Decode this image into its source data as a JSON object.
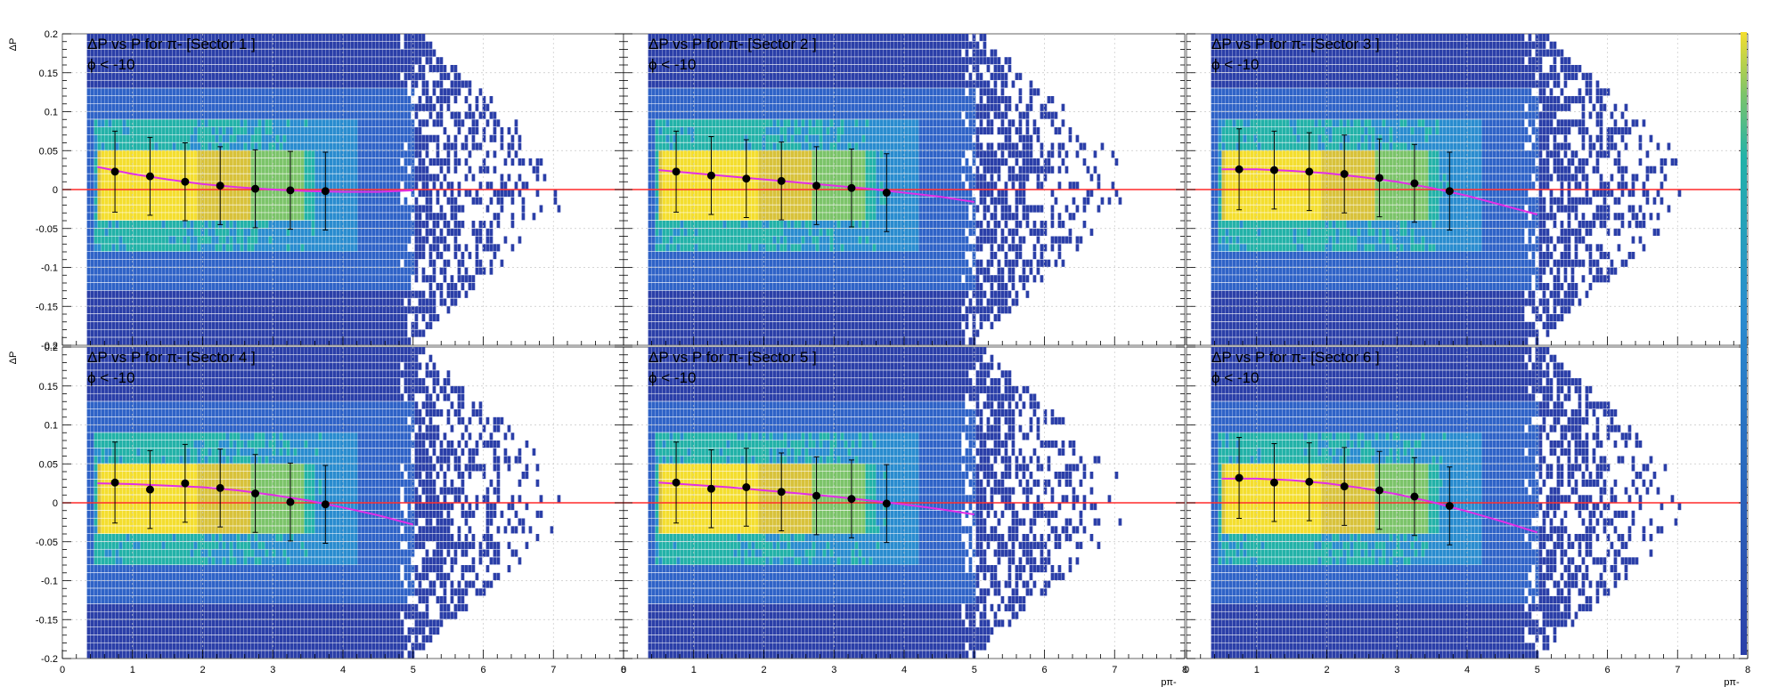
{
  "chart_data": [
    {
      "type": "heatmap",
      "title": "ΔP vs P for   π- [Sector 1 ]",
      "subtitle": "ϕ < -10",
      "xlabel": "",
      "ylabel": "ΔP",
      "xlim": [
        0,
        8
      ],
      "ylim": [
        -0.2,
        0.2
      ],
      "grid": true,
      "profile": {
        "x": [
          0.75,
          1.25,
          1.75,
          2.25,
          2.75,
          3.25,
          3.75
        ],
        "y": [
          0.023,
          0.017,
          0.01,
          0.005,
          0.001,
          -0.001,
          -0.002
        ],
        "err": [
          0.052,
          0.05,
          0.05,
          0.05,
          0.05,
          0.05,
          0.05
        ]
      },
      "fit": {
        "x": [
          0.5,
          1,
          1.5,
          2,
          2.5,
          3,
          3.5,
          4,
          4.5,
          5
        ],
        "y": [
          0.029,
          0.02,
          0.013,
          0.007,
          0.003,
          0.0,
          -0.002,
          -0.003,
          -0.003,
          -0.001
        ]
      },
      "reference_line": 0
    },
    {
      "type": "heatmap",
      "title": "ΔP vs P for   π- [Sector 2 ]",
      "subtitle": "ϕ < -10",
      "xlabel": "pπ-",
      "ylabel": "",
      "xlim": [
        0,
        8
      ],
      "ylim": [
        -0.2,
        0.2
      ],
      "grid": true,
      "profile": {
        "x": [
          0.75,
          1.25,
          1.75,
          2.25,
          2.75,
          3.25,
          3.75
        ],
        "y": [
          0.023,
          0.018,
          0.014,
          0.011,
          0.005,
          0.002,
          -0.004
        ],
        "err": [
          0.052,
          0.05,
          0.05,
          0.05,
          0.05,
          0.05,
          0.05
        ]
      },
      "fit": {
        "x": [
          0.5,
          1,
          1.5,
          2,
          2.5,
          3,
          3.5,
          4,
          4.5,
          5
        ],
        "y": [
          0.025,
          0.021,
          0.017,
          0.013,
          0.009,
          0.005,
          0.001,
          -0.004,
          -0.009,
          -0.016
        ]
      },
      "reference_line": 0
    },
    {
      "type": "heatmap",
      "title": "ΔP vs P for   π- [Sector 3 ]",
      "subtitle": "ϕ < -10",
      "xlabel": "pπ-",
      "ylabel": "",
      "xlim": [
        0,
        8
      ],
      "ylim": [
        -0.2,
        0.2
      ],
      "grid": true,
      "profile": {
        "x": [
          0.75,
          1.25,
          1.75,
          2.25,
          2.75,
          3.25,
          3.75
        ],
        "y": [
          0.026,
          0.025,
          0.023,
          0.02,
          0.015,
          0.008,
          -0.002
        ],
        "err": [
          0.052,
          0.05,
          0.05,
          0.05,
          0.05,
          0.05,
          0.05
        ]
      },
      "fit": {
        "x": [
          0.5,
          1,
          1.5,
          2,
          2.5,
          3,
          3.5,
          4,
          4.5,
          5
        ],
        "y": [
          0.026,
          0.026,
          0.024,
          0.021,
          0.016,
          0.01,
          0.002,
          -0.008,
          -0.02,
          -0.032
        ]
      },
      "reference_line": 0
    },
    {
      "type": "heatmap",
      "title": "ΔP vs P for   π- [Sector 4 ]",
      "subtitle": "ϕ < -10",
      "xlabel": "",
      "ylabel": "ΔP",
      "xlim": [
        0,
        8
      ],
      "ylim": [
        -0.2,
        0.2
      ],
      "grid": true,
      "profile": {
        "x": [
          0.75,
          1.25,
          1.75,
          2.25,
          2.75,
          3.25,
          3.75
        ],
        "y": [
          0.026,
          0.017,
          0.025,
          0.019,
          0.012,
          0.001,
          -0.002
        ],
        "err": [
          0.052,
          0.05,
          0.05,
          0.05,
          0.05,
          0.05,
          0.05
        ]
      },
      "fit": {
        "x": [
          0.5,
          1,
          1.5,
          2,
          2.5,
          3,
          3.5,
          4,
          4.5,
          5
        ],
        "y": [
          0.025,
          0.024,
          0.022,
          0.02,
          0.016,
          0.01,
          0.003,
          -0.006,
          -0.016,
          -0.028
        ]
      },
      "reference_line": 0
    },
    {
      "type": "heatmap",
      "title": "ΔP vs P for   π- [Sector 5 ]",
      "subtitle": "ϕ < -10",
      "xlabel": "pπ-",
      "ylabel": "",
      "xlim": [
        0,
        8
      ],
      "ylim": [
        -0.2,
        0.2
      ],
      "grid": true,
      "profile": {
        "x": [
          0.75,
          1.25,
          1.75,
          2.25,
          2.75,
          3.25,
          3.75
        ],
        "y": [
          0.026,
          0.018,
          0.02,
          0.014,
          0.009,
          0.005,
          -0.001
        ],
        "err": [
          0.052,
          0.05,
          0.05,
          0.05,
          0.05,
          0.05,
          0.05
        ]
      },
      "fit": {
        "x": [
          0.5,
          1,
          1.5,
          2,
          2.5,
          3,
          3.5,
          4,
          4.5,
          5
        ],
        "y": [
          0.026,
          0.023,
          0.02,
          0.016,
          0.012,
          0.008,
          0.003,
          -0.002,
          -0.008,
          -0.015
        ]
      },
      "reference_line": 0
    },
    {
      "type": "heatmap",
      "title": "ΔP vs P for   π- [Sector 6 ]",
      "subtitle": "ϕ < -10",
      "xlabel": "pπ-",
      "ylabel": "",
      "xlim": [
        0,
        8
      ],
      "ylim": [
        -0.2,
        0.2
      ],
      "grid": true,
      "profile": {
        "x": [
          0.75,
          1.25,
          1.75,
          2.25,
          2.75,
          3.25,
          3.75
        ],
        "y": [
          0.032,
          0.026,
          0.027,
          0.021,
          0.016,
          0.008,
          -0.004
        ],
        "err": [
          0.052,
          0.05,
          0.05,
          0.05,
          0.05,
          0.05,
          0.05
        ]
      },
      "fit": {
        "x": [
          0.5,
          1,
          1.5,
          2,
          2.5,
          3,
          3.5,
          4,
          4.5,
          5
        ],
        "y": [
          0.031,
          0.031,
          0.029,
          0.025,
          0.019,
          0.011,
          0.001,
          -0.011,
          -0.024,
          -0.038
        ]
      },
      "reference_line": 0
    }
  ],
  "colors": {
    "fit_line": "#e22ee6",
    "reference_line": "#ff2a2a",
    "marker": "#000000",
    "grid": "#c8c8c8",
    "palette": [
      "#2b3fa8",
      "#2f63c7",
      "#2a8ccf",
      "#23b2a8",
      "#7cc46a",
      "#d8c23b",
      "#f4de2f"
    ]
  },
  "tick_labels": {
    "y": [
      "-0.2",
      "-0.15",
      "-0.1",
      "-0.05",
      "0",
      "0.05",
      "0.1",
      "0.15",
      "0.2"
    ],
    "x": [
      "0",
      "1",
      "2",
      "3",
      "4",
      "5",
      "6",
      "7",
      "8"
    ]
  }
}
